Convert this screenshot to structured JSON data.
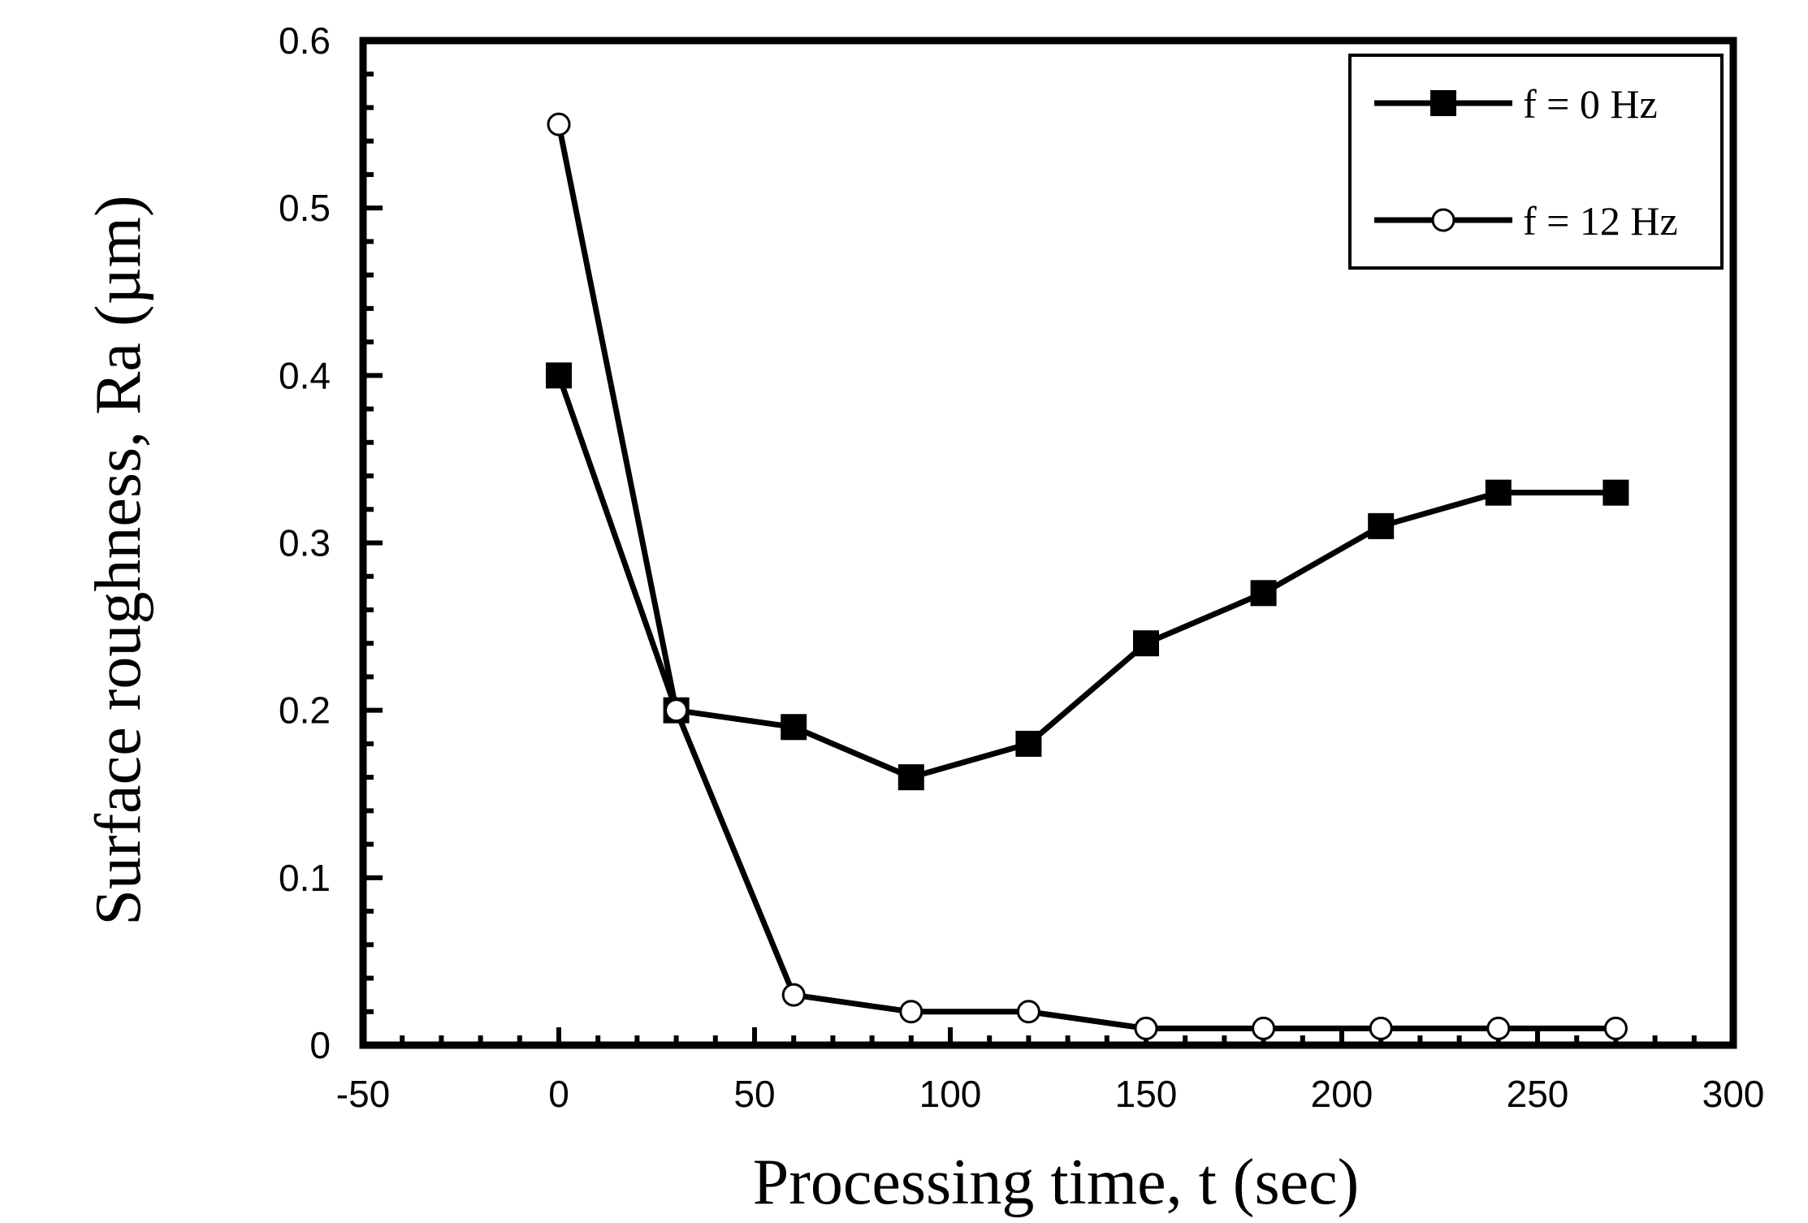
{
  "chart_data": {
    "type": "line",
    "title": "",
    "xlabel": "Processing time, t (sec)",
    "ylabel": "Surface roughness, Ra (µm)",
    "xlim": [
      -50,
      300
    ],
    "ylim": [
      0,
      0.6
    ],
    "x_ticks": [
      -50,
      0,
      50,
      100,
      150,
      200,
      250,
      300
    ],
    "x_tick_labels": [
      "-50",
      "0",
      "50",
      "100",
      "150",
      "200",
      "250",
      "300"
    ],
    "y_ticks": [
      0,
      0.1,
      0.2,
      0.3,
      0.4,
      0.5,
      0.6
    ],
    "y_tick_labels": [
      "0",
      "0.1",
      "0.2",
      "0.3",
      "0.4",
      "0.5",
      "0.6"
    ],
    "grid": false,
    "legend_position": "top-right",
    "series": [
      {
        "name": "f = 0 Hz",
        "marker": "filled-square",
        "x": [
          0,
          30,
          60,
          90,
          120,
          150,
          180,
          210,
          240,
          270
        ],
        "values": [
          0.4,
          0.2,
          0.19,
          0.16,
          0.18,
          0.24,
          0.27,
          0.31,
          0.33,
          0.33
        ]
      },
      {
        "name": "f = 12 Hz",
        "marker": "open-circle",
        "x": [
          0,
          30,
          60,
          90,
          120,
          150,
          180,
          210,
          240,
          270
        ],
        "values": [
          0.55,
          0.2,
          0.03,
          0.02,
          0.02,
          0.01,
          0.01,
          0.01,
          0.01,
          0.01
        ]
      }
    ]
  }
}
